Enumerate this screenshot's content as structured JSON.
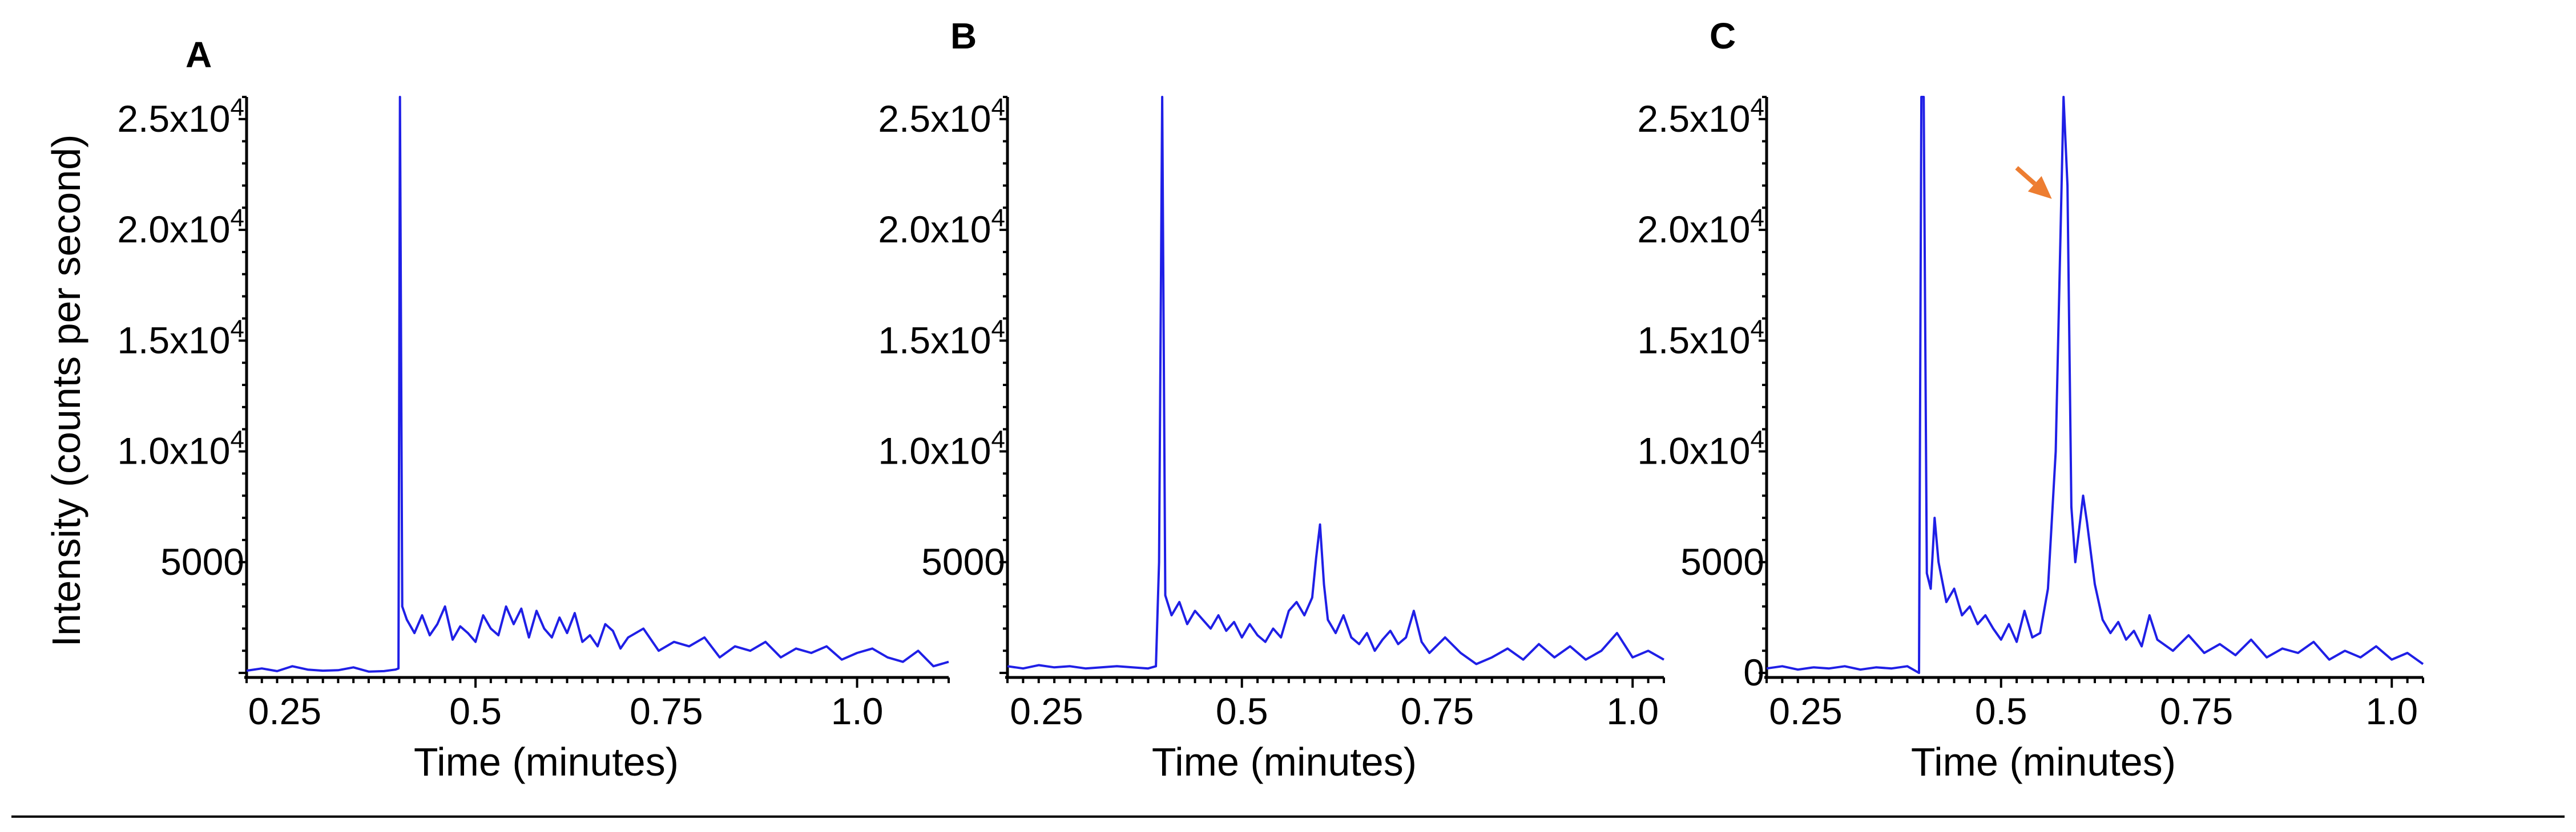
{
  "ylabel": "Intensity (counts per second)",
  "colors": {
    "trace": "#1f1fe6",
    "arrow": "#ed7d31",
    "axis": "#000000"
  },
  "chart_data": [
    {
      "type": "line",
      "panel": "A",
      "xlabel": "Time (minutes)",
      "xlim": [
        0.2,
        1.12
      ],
      "ylim": [
        0,
        26000
      ],
      "xticks": [
        "0.25",
        "0.5",
        "0.75",
        "1.0"
      ],
      "xtick_values": [
        0.25,
        0.5,
        0.75,
        1.0
      ],
      "yticks": [
        {
          "value": 5000,
          "base": "5000",
          "exp": ""
        },
        {
          "value": 10000,
          "base": "1.0x10",
          "exp": "4"
        },
        {
          "value": 15000,
          "base": "1.5x10",
          "exp": "4"
        },
        {
          "value": 20000,
          "base": "2.0x10",
          "exp": "4"
        },
        {
          "value": 25000,
          "base": "2.5x10",
          "exp": "4"
        }
      ],
      "series": [
        {
          "x": [
            0.2,
            0.22,
            0.24,
            0.26,
            0.28,
            0.3,
            0.32,
            0.34,
            0.36,
            0.38,
            0.395,
            0.399,
            0.401,
            0.404,
            0.41,
            0.42,
            0.43,
            0.44,
            0.45,
            0.46,
            0.47,
            0.48,
            0.49,
            0.5,
            0.51,
            0.52,
            0.53,
            0.54,
            0.55,
            0.56,
            0.57,
            0.58,
            0.59,
            0.6,
            0.61,
            0.62,
            0.63,
            0.64,
            0.65,
            0.66,
            0.67,
            0.68,
            0.69,
            0.7,
            0.72,
            0.74,
            0.76,
            0.78,
            0.8,
            0.82,
            0.84,
            0.86,
            0.88,
            0.9,
            0.92,
            0.94,
            0.96,
            0.98,
            1.0,
            1.02,
            1.04,
            1.06,
            1.08,
            1.1,
            1.12
          ],
          "y": [
            100,
            200,
            80,
            300,
            150,
            100,
            120,
            250,
            60,
            80,
            150,
            200,
            27000,
            3000,
            2400,
            1800,
            2600,
            1700,
            2200,
            3000,
            1500,
            2100,
            1800,
            1400,
            2600,
            2000,
            1700,
            3000,
            2200,
            2900,
            1600,
            2800,
            2000,
            1600,
            2500,
            1800,
            2700,
            1400,
            1700,
            1200,
            2200,
            1900,
            1100,
            1600,
            2000,
            1000,
            1400,
            1200,
            1600,
            700,
            1200,
            1000,
            1400,
            700,
            1100,
            900,
            1200,
            600,
            900,
            1100,
            700,
            500,
            1000,
            300,
            500
          ]
        }
      ]
    },
    {
      "type": "line",
      "panel": "B",
      "xlabel": "Time (minutes)",
      "xlim": [
        0.2,
        1.04
      ],
      "ylim": [
        0,
        26000
      ],
      "xticks": [
        "0.25",
        "0.5",
        "0.75",
        "1.0"
      ],
      "xtick_values": [
        0.25,
        0.5,
        0.75,
        1.0
      ],
      "yticks": [
        {
          "value": 5000,
          "base": "5000",
          "exp": ""
        },
        {
          "value": 10000,
          "base": "1.0x10",
          "exp": "4"
        },
        {
          "value": 15000,
          "base": "1.5x10",
          "exp": "4"
        },
        {
          "value": 20000,
          "base": "2.0x10",
          "exp": "4"
        },
        {
          "value": 25000,
          "base": "2.5x10",
          "exp": "4"
        }
      ],
      "series": [
        {
          "x": [
            0.2,
            0.22,
            0.24,
            0.26,
            0.28,
            0.3,
            0.32,
            0.34,
            0.36,
            0.38,
            0.39,
            0.394,
            0.398,
            0.402,
            0.41,
            0.42,
            0.43,
            0.44,
            0.45,
            0.46,
            0.47,
            0.48,
            0.49,
            0.5,
            0.51,
            0.52,
            0.53,
            0.54,
            0.55,
            0.56,
            0.57,
            0.58,
            0.59,
            0.595,
            0.6,
            0.605,
            0.61,
            0.62,
            0.63,
            0.64,
            0.65,
            0.66,
            0.67,
            0.68,
            0.69,
            0.7,
            0.71,
            0.72,
            0.73,
            0.74,
            0.76,
            0.78,
            0.8,
            0.82,
            0.84,
            0.86,
            0.88,
            0.9,
            0.92,
            0.94,
            0.96,
            0.98,
            1.0,
            1.02,
            1.04
          ],
          "y": [
            300,
            200,
            350,
            250,
            300,
            200,
            250,
            300,
            250,
            200,
            300,
            5000,
            27000,
            3500,
            2600,
            3200,
            2200,
            2800,
            2400,
            2000,
            2600,
            1900,
            2300,
            1600,
            2200,
            1700,
            1400,
            2000,
            1600,
            2800,
            3200,
            2600,
            3400,
            5200,
            6700,
            4000,
            2400,
            1800,
            2600,
            1600,
            1300,
            1800,
            1000,
            1500,
            1900,
            1300,
            1600,
            2800,
            1400,
            900,
            1600,
            900,
            400,
            700,
            1100,
            600,
            1300,
            700,
            1200,
            600,
            1000,
            1800,
            700,
            1000,
            600
          ]
        }
      ]
    },
    {
      "type": "line",
      "panel": "C",
      "xlabel": "Time (minutes)",
      "xlim": [
        0.2,
        1.04
      ],
      "ylim": [
        0,
        26000
      ],
      "xticks": [
        "0.25",
        "0.5",
        "0.75",
        "1.0"
      ],
      "xtick_values": [
        0.25,
        0.5,
        0.75,
        1.0
      ],
      "yticks": [
        {
          "value": 0,
          "base": "0",
          "exp": ""
        },
        {
          "value": 5000,
          "base": "5000",
          "exp": ""
        },
        {
          "value": 10000,
          "base": "1.0x10",
          "exp": "4"
        },
        {
          "value": 15000,
          "base": "1.5x10",
          "exp": "4"
        },
        {
          "value": 20000,
          "base": "2.0x10",
          "exp": "4"
        },
        {
          "value": 25000,
          "base": "2.5x10",
          "exp": "4"
        }
      ],
      "arrow": {
        "from_x": 0.52,
        "from_y": 22800,
        "to_x": 0.565,
        "to_y": 21400
      },
      "series": [
        {
          "x": [
            0.2,
            0.22,
            0.24,
            0.26,
            0.28,
            0.3,
            0.32,
            0.34,
            0.36,
            0.38,
            0.395,
            0.398,
            0.401,
            0.405,
            0.41,
            0.415,
            0.42,
            0.43,
            0.44,
            0.45,
            0.46,
            0.47,
            0.48,
            0.49,
            0.5,
            0.51,
            0.52,
            0.53,
            0.54,
            0.55,
            0.56,
            0.57,
            0.58,
            0.585,
            0.59,
            0.595,
            0.6,
            0.605,
            0.61,
            0.62,
            0.63,
            0.64,
            0.65,
            0.66,
            0.67,
            0.68,
            0.69,
            0.7,
            0.72,
            0.74,
            0.76,
            0.78,
            0.8,
            0.82,
            0.84,
            0.86,
            0.88,
            0.9,
            0.92,
            0.94,
            0.96,
            0.98,
            1.0,
            1.02,
            1.04
          ],
          "y": [
            200,
            300,
            150,
            250,
            200,
            300,
            150,
            250,
            200,
            300,
            0,
            27000,
            26000,
            4500,
            3800,
            7000,
            5000,
            3200,
            3800,
            2600,
            3000,
            2200,
            2600,
            2000,
            1500,
            2200,
            1400,
            2800,
            1600,
            1800,
            3800,
            10000,
            27000,
            22000,
            7500,
            5000,
            6500,
            8000,
            6800,
            4000,
            2400,
            1800,
            2300,
            1500,
            1900,
            1200,
            2600,
            1500,
            1000,
            1700,
            900,
            1300,
            800,
            1500,
            700,
            1100,
            900,
            1400,
            600,
            1000,
            700,
            1200,
            600,
            900,
            400
          ]
        }
      ]
    }
  ]
}
